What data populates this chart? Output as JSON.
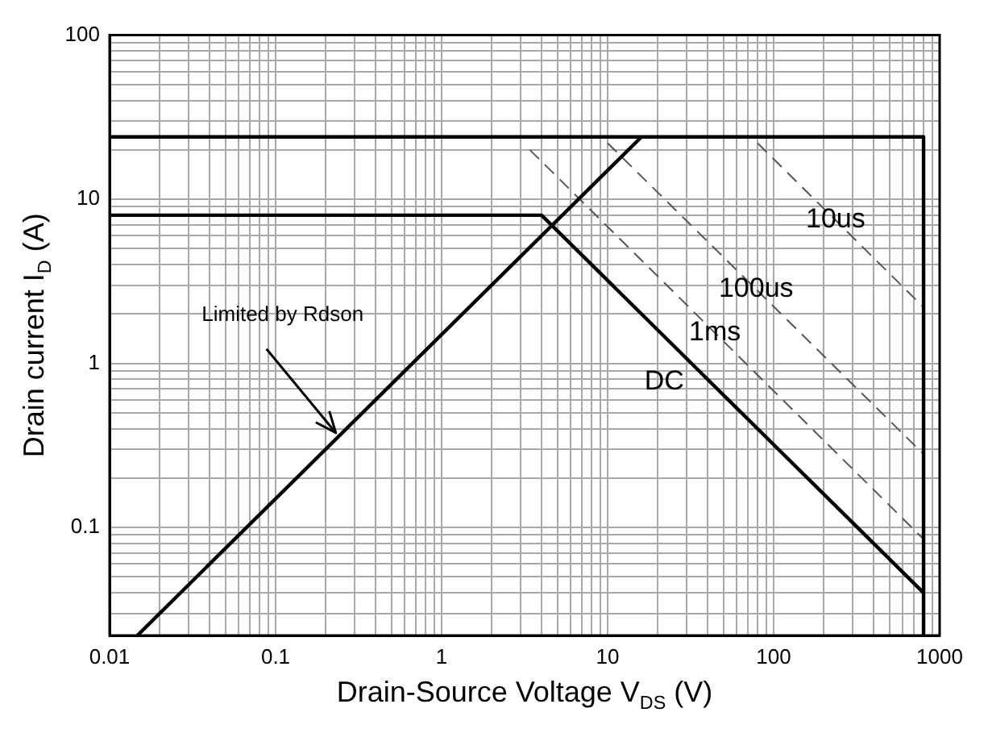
{
  "chart_data": {
    "type": "line",
    "xlabel": "Drain-Source Voltage V$_{DS}$ (V)",
    "ylabel": "Drain current I$_{D}$ (A)",
    "log": "xy",
    "grid": true,
    "marker": "none",
    "xlim": [
      0.01,
      1000
    ],
    "ylim": [
      0.022,
      100
    ],
    "xticks": [
      0.01,
      {
        "value": 0.02,
        "label": null
      },
      {
        "value": 0.03,
        "label": null
      },
      {
        "value": 0.04,
        "label": null
      },
      {
        "value": 0.05,
        "label": null
      },
      {
        "value": 0.06,
        "label": null
      },
      {
        "value": 0.07,
        "label": null
      },
      {
        "value": 0.08,
        "label": null
      },
      {
        "value": 0.09,
        "label": null
      },
      0.1,
      {
        "value": 0.2,
        "label": null
      },
      {
        "value": 0.3,
        "label": null
      },
      {
        "value": 0.4,
        "label": null
      },
      {
        "value": 0.5,
        "label": null
      },
      {
        "value": 0.6,
        "label": null
      },
      {
        "value": 0.7,
        "label": null
      },
      {
        "value": 0.8,
        "label": null
      },
      {
        "value": 0.9,
        "label": null
      },
      1,
      {
        "value": 2,
        "label": null
      },
      {
        "value": 3,
        "label": null
      },
      {
        "value": 4,
        "label": null
      },
      {
        "value": 5,
        "label": null
      },
      {
        "value": 6,
        "label": null
      },
      {
        "value": 7,
        "label": null
      },
      {
        "value": 8,
        "label": null
      },
      {
        "value": 9,
        "label": null
      },
      10,
      {
        "value": 20,
        "label": null
      },
      {
        "value": 30,
        "label": null
      },
      {
        "value": 40,
        "label": null
      },
      {
        "value": 50,
        "label": null
      },
      {
        "value": 60,
        "label": null
      },
      {
        "value": 70,
        "label": null
      },
      {
        "value": 80,
        "label": null
      },
      {
        "value": 90,
        "label": null
      },
      100,
      {
        "value": 200,
        "label": null
      },
      {
        "value": 300,
        "label": null
      },
      {
        "value": 400,
        "label": null
      },
      {
        "value": 500,
        "label": null
      },
      {
        "value": 600,
        "label": null
      },
      {
        "value": 700,
        "label": null
      },
      {
        "value": 800,
        "label": null
      },
      {
        "value": 900,
        "label": null
      },
      1000
    ],
    "yticks": [
      {
        "value": 0.03,
        "label": null
      },
      {
        "value": 0.04,
        "label": null
      },
      {
        "value": 0.05,
        "label": null
      },
      {
        "value": 0.06,
        "label": null
      },
      {
        "value": 0.07,
        "label": null
      },
      {
        "value": 0.08,
        "label": null
      },
      {
        "value": 0.09,
        "label": null
      },
      0.1,
      {
        "value": 0.2,
        "label": null
      },
      {
        "value": 0.3,
        "label": null
      },
      {
        "value": 0.4,
        "label": null
      },
      {
        "value": 0.5,
        "label": null
      },
      {
        "value": 0.6,
        "label": null
      },
      {
        "value": 0.7,
        "label": null
      },
      {
        "value": 0.8,
        "label": null
      },
      {
        "value": 0.9,
        "label": null
      },
      1,
      {
        "value": 2,
        "label": null
      },
      {
        "value": 3,
        "label": null
      },
      {
        "value": 4,
        "label": null
      },
      {
        "value": 5,
        "label": null
      },
      {
        "value": 6,
        "label": null
      },
      {
        "value": 7,
        "label": null
      },
      {
        "value": 8,
        "label": null
      },
      {
        "value": 9,
        "label": null
      },
      10,
      {
        "value": 20,
        "label": null
      },
      {
        "value": 30,
        "label": null
      },
      {
        "value": 40,
        "label": null
      },
      {
        "value": 50,
        "label": null
      },
      {
        "value": 60,
        "label": null
      },
      {
        "value": 70,
        "label": null
      },
      {
        "value": 80,
        "label": null
      },
      {
        "value": 90,
        "label": null
      },
      100
    ],
    "series": [
      {
        "color": "#000000",
        "line_style": "solid",
        "x": [
          0.01,
          800,
          800
        ],
        "values": [
          24,
          24,
          0.022
        ]
      },
      {
        "name": "Limited by Rdson",
        "color": "#000000",
        "line_style": "solid",
        "x": [
          0.0147,
          16
        ],
        "values": [
          0.022,
          24
        ]
      },
      {
        "name": "DC",
        "color": "#000000",
        "line_style": "solid",
        "x": [
          0.01,
          4,
          800
        ],
        "values": [
          8,
          8,
          0.04
        ]
      },
      {
        "name": "1ms",
        "color": "#555555",
        "line_style": "dashed",
        "x": [
          3.4,
          800
        ],
        "values": [
          20,
          0.085
        ]
      },
      {
        "name": "100us",
        "color": "#555555",
        "line_style": "dashed",
        "x": [
          10,
          800
        ],
        "values": [
          22,
          0.28
        ]
      },
      {
        "name": "10us",
        "color": "#555555",
        "line_style": "dashed",
        "x": [
          80,
          800
        ],
        "values": [
          22,
          2.2
        ]
      }
    ]
  }
}
